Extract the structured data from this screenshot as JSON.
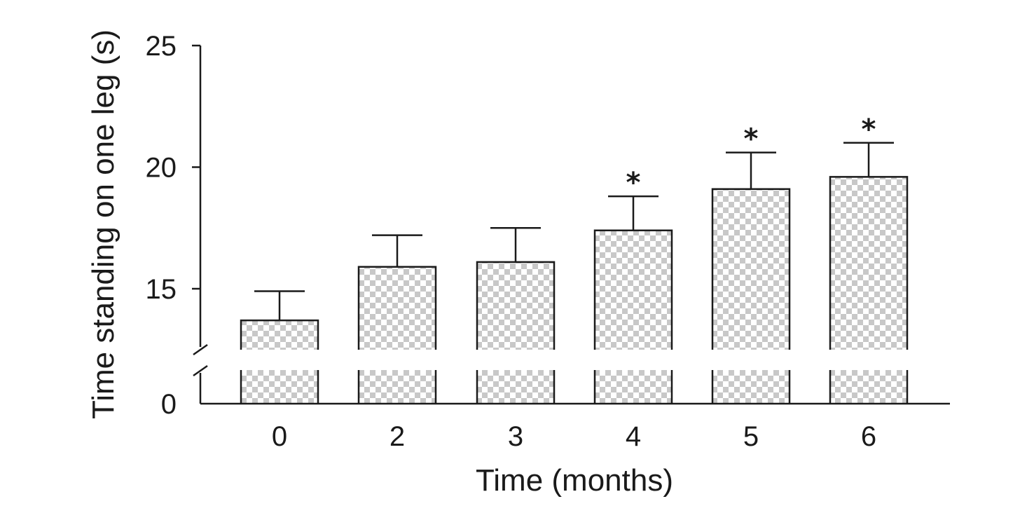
{
  "chart_data": {
    "type": "bar",
    "categories": [
      "0",
      "2",
      "3",
      "4",
      "5",
      "6"
    ],
    "values": [
      13.7,
      15.9,
      16.1,
      17.4,
      19.1,
      19.6
    ],
    "error_upper": [
      14.9,
      17.2,
      17.5,
      18.8,
      20.6,
      21.0
    ],
    "significance": [
      "",
      "",
      "",
      "*",
      "*",
      "*"
    ],
    "xlabel": "Time (months)",
    "ylabel": "Time standing on one leg (s)",
    "y_ticks": [
      0,
      15,
      20,
      25
    ],
    "y_tick_labels": [
      "0",
      "15",
      "20",
      "25"
    ],
    "ylim": [
      12.5,
      25
    ],
    "axis_break": true,
    "grid": false,
    "bar_fill": "checkerboard",
    "colors": {
      "axis": "#1a1a1a",
      "check_dark": "#c8c8c8",
      "check_light": "#ffffff"
    }
  }
}
